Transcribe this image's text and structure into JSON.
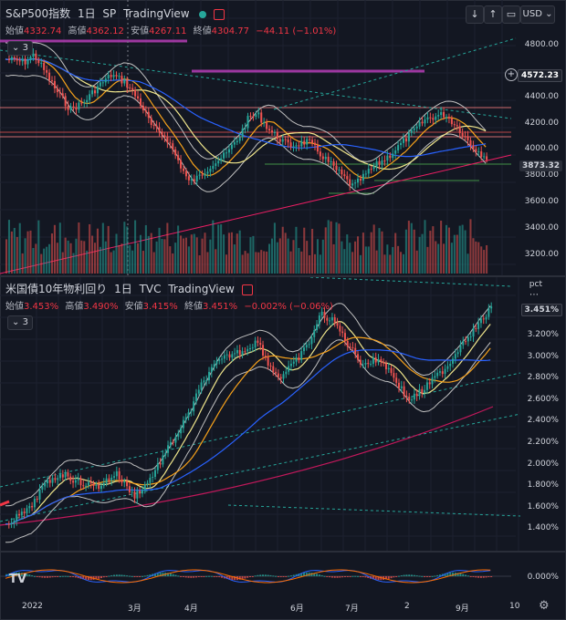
{
  "pane1": {
    "symbol": "S&P500指数",
    "interval": "1日",
    "exchange": "SP",
    "source": "TradingView",
    "ohlc_open_label": "始値",
    "ohlc_open": "4332.74",
    "ohlc_high_label": "高値",
    "ohlc_high": "4362.12",
    "ohlc_low_label": "安値",
    "ohlc_low": "4267.11",
    "ohlc_close_label": "終値",
    "ohlc_close": "4304.77",
    "ohlc_change": "−44.11 (−1.01%)",
    "indicator_count": "3",
    "currency": "USD",
    "y_ticks": [
      "4800.00",
      "4400.00",
      "4200.00",
      "4000.00",
      "3800.00",
      "3600.00",
      "3400.00",
      "3200.00"
    ],
    "price_tag_1": "4572.23",
    "price_tag_2": "3873.32"
  },
  "pane2": {
    "symbol": "米国債10年物利回り",
    "interval": "1日",
    "exchange": "TVC",
    "source": "TradingView",
    "ohlc_open_label": "始値",
    "ohlc_open": "3.453%",
    "ohlc_high_label": "高値",
    "ohlc_high": "3.490%",
    "ohlc_low_label": "安値",
    "ohlc_low": "3.415%",
    "ohlc_close_label": "終値",
    "ohlc_close": "3.451%",
    "ohlc_change": "−0.002% (−0.06%)",
    "indicator_count": "3",
    "unit": "pct",
    "y_ticks": [
      "3.200%",
      "3.000%",
      "2.800%",
      "2.600%",
      "2.400%",
      "2.200%",
      "2.000%",
      "1.800%",
      "1.600%",
      "1.400%"
    ],
    "price_tag": "3.451%"
  },
  "pane3": {
    "y_tick": "0.000%"
  },
  "x_axis": [
    "2022",
    "3月",
    "4月",
    "6月",
    "7月",
    "2",
    "9月",
    "10"
  ],
  "colors": {
    "up": "#26a69a",
    "down": "#ef5350",
    "bg": "#131722",
    "ma_orange": "#f7a21b",
    "ma_yellow": "#f0e68c",
    "ma_blue": "#2962ff",
    "ma_red": "#e91e63",
    "band": "#c0c0c0"
  },
  "icons": [
    "chevron-down-icon",
    "arrow-down-icon",
    "arrow-up-icon",
    "rectangle-icon",
    "dots-icon",
    "plus-circle-icon",
    "tradingview-logo-icon",
    "settings-icon"
  ]
}
